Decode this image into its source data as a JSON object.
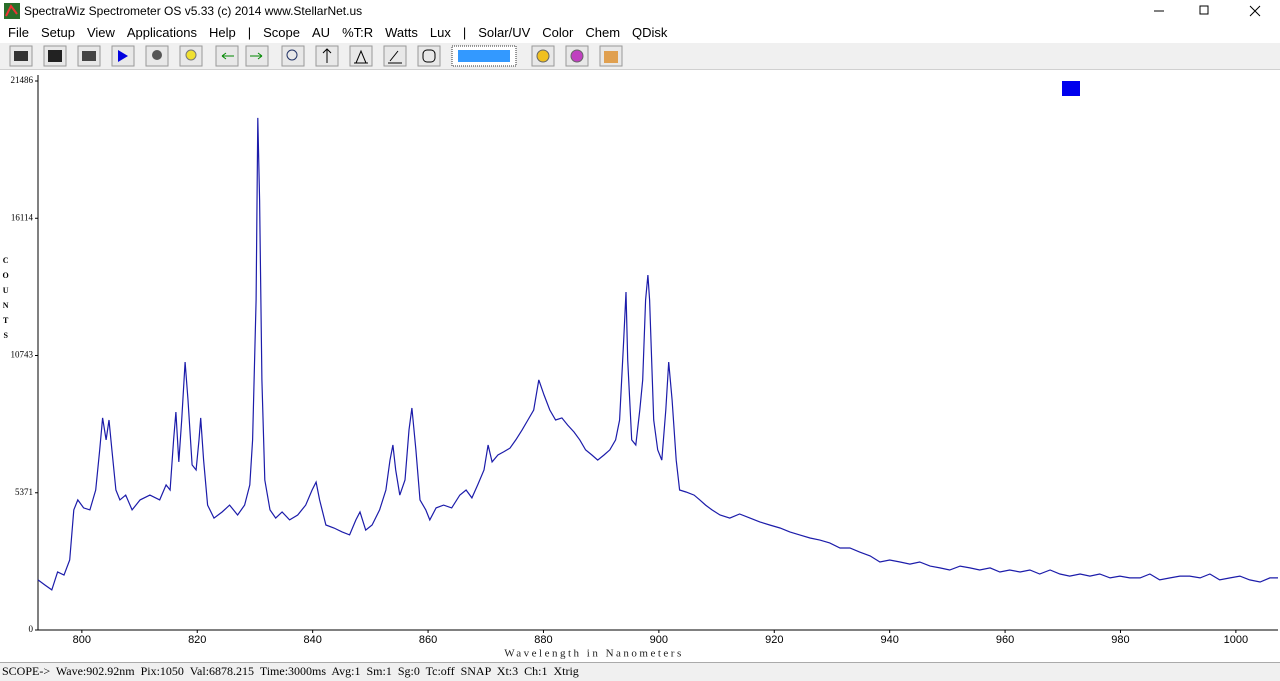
{
  "window": {
    "title": "SpectraWiz  Spectrometer OS v5.33 (c) 2014    www.StellarNet.us"
  },
  "menu": [
    "File",
    "Setup",
    "View",
    "Applications",
    "Help",
    "|",
    "Scope",
    "AU",
    "%T:R",
    "Watts",
    "Lux",
    "|",
    "Solar/UV",
    "Color",
    "Chem",
    "QDisk"
  ],
  "chart_data": {
    "type": "line",
    "x_label": "Wavelength in Nanometers",
    "y_label": "COUNTS",
    "color": "#1c1caa",
    "xlim": [
      792.4,
      1007.3
    ],
    "ylim": [
      0,
      21486
    ],
    "xticks": [
      800,
      820,
      840,
      860,
      880,
      900,
      920,
      940,
      960,
      980,
      1000
    ],
    "yticks": [
      0,
      5371,
      10743,
      16114,
      21486
    ],
    "grid": false,
    "x": [
      792.4,
      793.6,
      794.8,
      795.8,
      796.9,
      797.9,
      798.6,
      799.3,
      800.3,
      801.4,
      802.4,
      803.1,
      803.6,
      804.2,
      804.7,
      805.2,
      805.9,
      806.6,
      807.6,
      808.7,
      810.1,
      811.8,
      813.5,
      814.6,
      815.3,
      815.9,
      816.3,
      816.8,
      817.3,
      817.9,
      818.4,
      819.1,
      819.8,
      820.3,
      820.6,
      821.1,
      821.8,
      822.9,
      824.3,
      825.6,
      827.0,
      828.2,
      829.1,
      829.6,
      830.2,
      830.5,
      830.8,
      831.2,
      831.7,
      832.6,
      833.6,
      834.7,
      836.0,
      837.4,
      838.8,
      839.9,
      840.6,
      841.2,
      842.3,
      843.7,
      845.1,
      846.4,
      847.5,
      848.2,
      849.2,
      850.3,
      851.6,
      852.7,
      853.4,
      853.9,
      854.4,
      855.1,
      856.0,
      856.7,
      857.2,
      857.9,
      858.6,
      859.6,
      860.3,
      861.4,
      862.7,
      864.1,
      865.5,
      866.6,
      867.6,
      868.6,
      869.7,
      870.4,
      871.1,
      872.1,
      873.1,
      874.2,
      875.2,
      876.3,
      877.3,
      878.3,
      879.2,
      880.1,
      881.1,
      882.1,
      883.2,
      884.2,
      885.3,
      886.3,
      887.3,
      888.4,
      889.4,
      890.5,
      891.5,
      892.5,
      893.2,
      893.9,
      894.3,
      894.6,
      895.3,
      896.0,
      896.7,
      897.2,
      897.7,
      898.1,
      898.4,
      899.1,
      899.8,
      900.5,
      901.2,
      901.7,
      902.3,
      903.0,
      903.6,
      904.7,
      906.1,
      907.1,
      908.1,
      909.2,
      910.6,
      912.3,
      914.0,
      915.8,
      917.5,
      919.2,
      921.0,
      922.7,
      924.4,
      926.2,
      927.9,
      929.6,
      931.4,
      933.1,
      934.8,
      936.6,
      938.3,
      940.0,
      941.8,
      943.5,
      945.2,
      947.0,
      948.7,
      950.4,
      952.2,
      953.9,
      955.6,
      957.4,
      959.1,
      960.8,
      962.6,
      964.3,
      966.0,
      967.8,
      969.5,
      971.2,
      973.0,
      974.7,
      976.4,
      978.2,
      979.9,
      981.6,
      983.4,
      985.1,
      986.8,
      988.6,
      990.3,
      992.0,
      993.8,
      995.5,
      997.2,
      999.0,
      1000.7,
      1002.4,
      1004.2,
      1005.9,
      1007.3
    ],
    "values": [
      1960,
      1760,
      1570,
      2270,
      2150,
      2740,
      4700,
      5090,
      4780,
      4700,
      5480,
      7050,
      8300,
      7440,
      8220,
      7050,
      5480,
      5090,
      5280,
      4700,
      5090,
      5280,
      5090,
      5680,
      5480,
      7440,
      8530,
      6580,
      8220,
      10490,
      9000,
      6460,
      6260,
      7440,
      8300,
      6650,
      4890,
      4380,
      4620,
      4890,
      4500,
      4890,
      5680,
      7440,
      12920,
      20040,
      16830,
      9790,
      5870,
      4700,
      4380,
      4620,
      4310,
      4500,
      4890,
      5480,
      5790,
      5090,
      4110,
      3990,
      3840,
      3720,
      4310,
      4620,
      3910,
      4110,
      4700,
      5480,
      6650,
      7240,
      6260,
      5280,
      5870,
      7830,
      8690,
      7050,
      5090,
      4700,
      4310,
      4780,
      4890,
      4780,
      5280,
      5480,
      5170,
      5680,
      6260,
      7240,
      6580,
      6850,
      6970,
      7120,
      7440,
      7830,
      8220,
      8610,
      9790,
      9200,
      8610,
      8220,
      8300,
      8020,
      7750,
      7440,
      7050,
      6850,
      6650,
      6850,
      7050,
      7440,
      8220,
      11350,
      13230,
      10570,
      7440,
      7240,
      8610,
      9790,
      12920,
      13890,
      12920,
      8220,
      7050,
      6650,
      8610,
      10490,
      9000,
      6650,
      5480,
      5400,
      5280,
      5090,
      4890,
      4700,
      4500,
      4380,
      4540,
      4380,
      4230,
      4110,
      3990,
      3840,
      3720,
      3600,
      3520,
      3410,
      3210,
      3210,
      3050,
      2900,
      2660,
      2740,
      2660,
      2580,
      2660,
      2500,
      2430,
      2350,
      2500,
      2430,
      2350,
      2430,
      2270,
      2350,
      2270,
      2350,
      2190,
      2350,
      2190,
      2110,
      2190,
      2110,
      2190,
      2040,
      2110,
      2040,
      2040,
      2190,
      1960,
      2040,
      2110,
      2110,
      2040,
      2190,
      1960,
      2040,
      2110,
      1960,
      1880,
      2040,
      2040
    ]
  },
  "status_bar": "SCOPE->  Wave:902.92nm  Pix:1050  Val:6878.215  Time:3000ms  Avg:1  Sm:1  Sg:0  Tc:off  SNAP  Xt:3  Ch:1  Xtrig"
}
